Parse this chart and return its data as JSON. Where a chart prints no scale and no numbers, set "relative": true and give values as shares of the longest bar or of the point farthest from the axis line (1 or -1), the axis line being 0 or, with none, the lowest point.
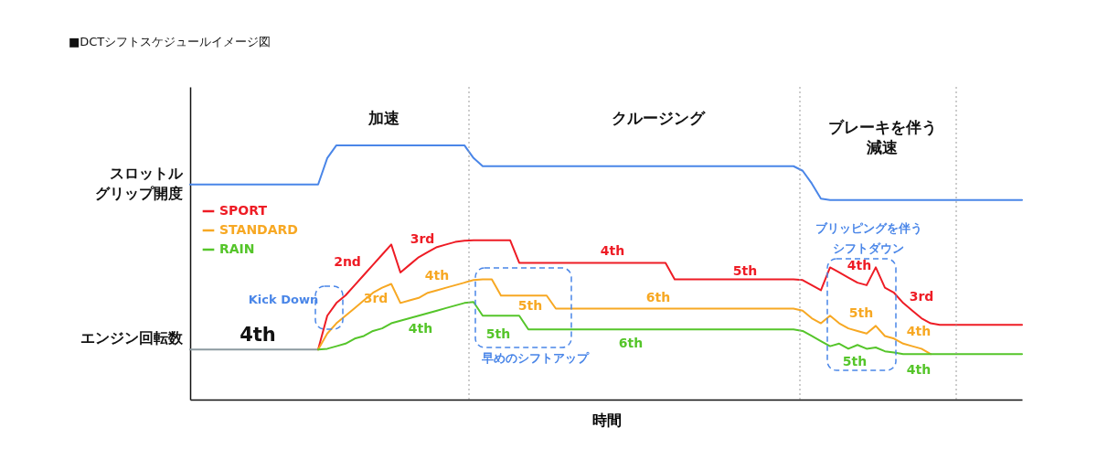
{
  "chart_data": {
    "type": "line",
    "title": "■DCTシフトスケジュールイメージ図",
    "xlabel": "時間",
    "relative": true,
    "legend": "top left",
    "categories": [
      null,
      null,
      null,
      null,
      null,
      null,
      null,
      null,
      null,
      null,
      null,
      null,
      null,
      null,
      null,
      null,
      null,
      null,
      null,
      null,
      null,
      null,
      null,
      null,
      null,
      null,
      null,
      null,
      null,
      null,
      null,
      null,
      null,
      null,
      null,
      null,
      null,
      null,
      null,
      null,
      null,
      null,
      null,
      null,
      null,
      null,
      null,
      null,
      null,
      null,
      null,
      null,
      null,
      null,
      null,
      null,
      null,
      null,
      null,
      null,
      null,
      null,
      null,
      null,
      null,
      null,
      null,
      null,
      null,
      null,
      null,
      null,
      null,
      null,
      null,
      null,
      null,
      null,
      null,
      null,
      null,
      null,
      null,
      null,
      null,
      null,
      null,
      null,
      null,
      null,
      null,
      null
    ],
    "series": [
      {
        "name": "スロットルグリップ開度",
        "color": "#4a86e8",
        "values": [
          0.846,
          0.846,
          0.846,
          0.846,
          0.846,
          0.846,
          0.846,
          0.846,
          0.846,
          0.846,
          0.846,
          0.846,
          0.846,
          0.846,
          0.846,
          0.95,
          1,
          1,
          1,
          1,
          1,
          1,
          1,
          1,
          1,
          1,
          1,
          1,
          1,
          1,
          1,
          0.95,
          0.918,
          0.918,
          0.918,
          0.918,
          0.918,
          0.918,
          0.918,
          0.918,
          0.918,
          0.918,
          0.918,
          0.918,
          0.918,
          0.918,
          0.918,
          0.918,
          0.918,
          0.918,
          0.918,
          0.918,
          0.918,
          0.918,
          0.918,
          0.918,
          0.918,
          0.918,
          0.918,
          0.918,
          0.918,
          0.918,
          0.918,
          0.918,
          0.918,
          0.918,
          0.918,
          0.9,
          0.85,
          0.79,
          0.785,
          0.785,
          0.785,
          0.785,
          0.785,
          0.785,
          0.785,
          0.785,
          0.785,
          0.785,
          0.785,
          0.785,
          0.785,
          0.785,
          0.785,
          0.785,
          0.785,
          0.785,
          0.785,
          0.785,
          0.785,
          0.785
        ]
      },
      {
        "name": "エンジン回転数",
        "color": "#8c9aa0",
        "values": [
          0.197,
          0.197,
          0.197,
          0.197,
          0.197,
          0.197,
          0.197,
          0.197,
          0.197,
          0.197,
          0.197,
          0.197,
          0.197,
          0.197,
          0.197,
          null,
          null,
          null,
          null,
          null,
          null,
          null,
          null,
          null,
          null,
          null,
          null,
          null,
          null,
          null,
          null,
          null,
          null,
          null,
          null,
          null,
          null,
          null,
          null,
          null,
          null,
          null,
          null,
          null,
          null,
          null,
          null,
          null,
          null,
          null,
          null,
          null,
          null,
          null,
          null,
          null,
          null,
          null,
          null,
          null,
          null,
          null,
          null,
          null,
          null,
          null,
          null,
          null,
          null,
          null,
          null,
          null,
          null,
          null,
          null,
          null,
          null,
          null,
          null,
          null,
          null,
          null,
          null,
          null,
          null,
          null,
          null,
          null,
          null,
          null,
          null,
          null
        ]
      },
      {
        "name": "SPORT",
        "color": "#ee1c25",
        "values": [
          null,
          null,
          null,
          null,
          null,
          null,
          null,
          null,
          null,
          null,
          null,
          null,
          null,
          null,
          0.197,
          0.33,
          0.38,
          0.41,
          0.45,
          0.49,
          0.53,
          0.57,
          0.61,
          0.5,
          0.53,
          0.56,
          0.58,
          0.6,
          0.61,
          0.62,
          0.625,
          0.627,
          0.627,
          0.627,
          0.627,
          0.627,
          0.538,
          0.538,
          0.538,
          0.538,
          0.538,
          0.538,
          0.538,
          0.538,
          0.538,
          0.538,
          0.538,
          0.538,
          0.538,
          0.538,
          0.538,
          0.538,
          0.538,
          0.473,
          0.473,
          0.473,
          0.473,
          0.473,
          0.473,
          0.473,
          0.473,
          0.473,
          0.473,
          0.473,
          0.473,
          0.473,
          0.473,
          0.47,
          0.45,
          0.43,
          0.52,
          0.5,
          0.48,
          0.46,
          0.45,
          0.52,
          0.44,
          0.42,
          0.38,
          0.35,
          0.32,
          0.3,
          0.294,
          0.294,
          0.294,
          0.294,
          0.294,
          0.294,
          0.294,
          0.294,
          0.294,
          0.294
        ]
      },
      {
        "name": "STANDARD",
        "color": "#f7a823",
        "values": [
          null,
          null,
          null,
          null,
          null,
          null,
          null,
          null,
          null,
          null,
          null,
          null,
          null,
          null,
          0.197,
          0.26,
          0.3,
          0.33,
          0.36,
          0.39,
          0.42,
          0.44,
          0.455,
          0.38,
          0.39,
          0.4,
          0.42,
          0.43,
          0.44,
          0.45,
          0.46,
          0.47,
          0.473,
          0.473,
          0.409,
          0.409,
          0.409,
          0.409,
          0.409,
          0.409,
          0.358,
          0.358,
          0.358,
          0.358,
          0.358,
          0.358,
          0.358,
          0.358,
          0.358,
          0.358,
          0.358,
          0.358,
          0.358,
          0.358,
          0.358,
          0.358,
          0.358,
          0.358,
          0.358,
          0.358,
          0.358,
          0.358,
          0.358,
          0.358,
          0.358,
          0.358,
          0.358,
          0.35,
          0.32,
          0.3,
          0.33,
          0.3,
          0.28,
          0.27,
          0.26,
          0.29,
          0.25,
          0.24,
          0.22,
          0.21,
          0.2,
          0.179,
          null,
          null,
          null,
          null,
          null,
          null,
          null,
          null,
          null,
          null
        ]
      },
      {
        "name": "RAIN",
        "color": "#55c52a",
        "values": [
          null,
          null,
          null,
          null,
          null,
          null,
          null,
          null,
          null,
          null,
          null,
          null,
          null,
          null,
          0.197,
          0.2,
          0.21,
          0.22,
          0.24,
          0.25,
          0.27,
          0.28,
          0.3,
          0.31,
          0.32,
          0.33,
          0.34,
          0.35,
          0.36,
          0.37,
          0.38,
          0.384,
          0.33,
          0.33,
          0.33,
          0.33,
          0.33,
          0.276,
          0.276,
          0.276,
          0.276,
          0.276,
          0.276,
          0.276,
          0.276,
          0.276,
          0.276,
          0.276,
          0.276,
          0.276,
          0.276,
          0.276,
          0.276,
          0.276,
          0.276,
          0.276,
          0.276,
          0.276,
          0.276,
          0.276,
          0.276,
          0.276,
          0.276,
          0.276,
          0.276,
          0.276,
          0.276,
          0.27,
          0.25,
          0.23,
          0.21,
          0.22,
          0.2,
          0.215,
          0.2,
          0.205,
          0.19,
          0.185,
          0.179,
          0.179,
          0.179,
          0.179,
          0.179,
          0.179,
          0.179,
          0.179,
          0.179,
          0.179,
          0.179,
          0.179,
          0.179,
          0.179
        ]
      }
    ],
    "annotations": [
      "加速",
      "クルージング",
      "ブレーキを伴う減速",
      "2nd",
      "3rd",
      "4th",
      "5th",
      "4th",
      "3rd",
      "3rd",
      "4th",
      "5th",
      "6th",
      "5th",
      "4th",
      "4th",
      "5th",
      "6th",
      "5th",
      "4th",
      "4th",
      "Kick Down",
      "早めのシフトアップ",
      "ブリッピングを伴うシフトダウン"
    ]
  }
}
